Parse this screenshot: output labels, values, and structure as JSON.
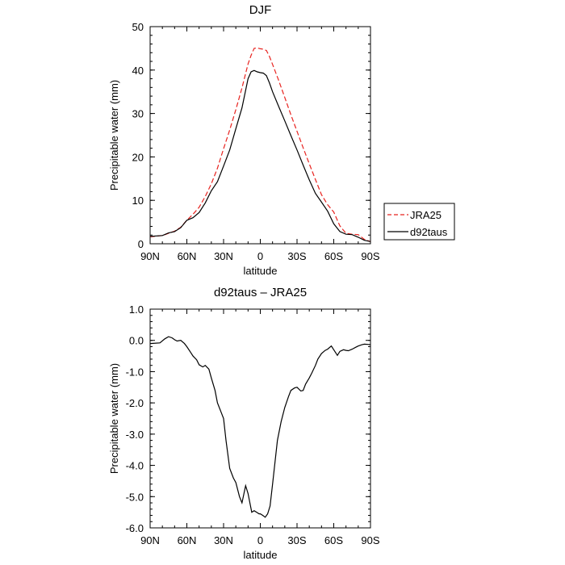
{
  "chart_data": [
    {
      "type": "line",
      "title": "DJF",
      "xlabel": "latitude",
      "ylabel": "Precipitable water (mm)",
      "xlim": [
        90,
        -90
      ],
      "ylim": [
        0,
        50
      ],
      "xticks": [
        90,
        60,
        30,
        0,
        -30,
        -60,
        -90
      ],
      "xtick_labels": [
        "90N",
        "60N",
        "30N",
        "0",
        "30S",
        "60S",
        "90S"
      ],
      "yticks": [
        0,
        10,
        20,
        30,
        40,
        50
      ],
      "ytick_labels": [
        "0",
        "10",
        "20",
        "30",
        "40",
        "50"
      ],
      "legend_position": "right-outside",
      "series": [
        {
          "name": "JRA25",
          "color": "#e8231f",
          "style": "dashed",
          "x": [
            90,
            80,
            75,
            70,
            65,
            60,
            55,
            50,
            45,
            40,
            35,
            30,
            25,
            20,
            15,
            10,
            7.5,
            5,
            2.5,
            0,
            -2.5,
            -5,
            -7.5,
            -10,
            -15,
            -20,
            -25,
            -30,
            -35,
            -40,
            -45,
            -50,
            -55,
            -60,
            -65,
            -70,
            -75,
            -80,
            -85,
            -90
          ],
          "y": [
            1.6,
            1.9,
            2.4,
            2.9,
            3.8,
            5.4,
            6.8,
            8.4,
            10.9,
            13.8,
            17.4,
            21.9,
            26.2,
            30.9,
            35.9,
            41.4,
            43.4,
            45.0,
            45.1,
            44.9,
            44.8,
            44.5,
            43.1,
            41.3,
            37.6,
            33.7,
            29.7,
            25.9,
            22.1,
            18.4,
            14.8,
            11.3,
            9.0,
            7.3,
            4.1,
            2.4,
            2.2,
            2.1,
            1.0,
            0.5
          ]
        },
        {
          "name": "d92taus",
          "color": "#000000",
          "style": "solid",
          "x": [
            90,
            80,
            75,
            70,
            65,
            60,
            55,
            50,
            45,
            40,
            35,
            30,
            25,
            20,
            15,
            10,
            7.5,
            5,
            2.5,
            0,
            -2.5,
            -5,
            -7.5,
            -10,
            -15,
            -20,
            -25,
            -30,
            -35,
            -40,
            -45,
            -50,
            -55,
            -60,
            -65,
            -70,
            -75,
            -80,
            -85,
            -90
          ],
          "y": [
            1.7,
            1.9,
            2.5,
            2.8,
            3.7,
            5.4,
            6.0,
            7.2,
            9.4,
            12.2,
            14.3,
            17.9,
            21.6,
            26.5,
            31.3,
            38.0,
            39.6,
            39.9,
            39.6,
            39.4,
            39.3,
            38.7,
            37.0,
            35.0,
            31.6,
            28.3,
            24.9,
            21.6,
            18.1,
            14.7,
            11.6,
            9.6,
            7.5,
            4.6,
            2.8,
            2.2,
            2.1,
            1.5,
            0.8,
            0.5
          ]
        }
      ]
    },
    {
      "type": "line",
      "title": "d92taus – JRA25",
      "xlabel": "latitude",
      "ylabel": "Precipitable water (mm)",
      "xlim": [
        90,
        -90
      ],
      "ylim": [
        -6.0,
        1.0
      ],
      "xticks": [
        90,
        60,
        30,
        0,
        -30,
        -60,
        -90
      ],
      "xtick_labels": [
        "90N",
        "60N",
        "30N",
        "0",
        "30S",
        "60S",
        "90S"
      ],
      "yticks": [
        1.0,
        0.0,
        -1.0,
        -2.0,
        -3.0,
        -4.0,
        -5.0,
        -6.0
      ],
      "ytick_labels": [
        "1.0",
        "0.0",
        "-1.0",
        "-2.0",
        "-3.0",
        "-4.0",
        "-5.0",
        "-6.0"
      ],
      "series": [
        {
          "color": "#000000",
          "style": "solid",
          "x": [
            90,
            82,
            78,
            75,
            72,
            70,
            68,
            65,
            62,
            60,
            57,
            55,
            52,
            50,
            47,
            45,
            42,
            40,
            37,
            35,
            32,
            30,
            28,
            25,
            22,
            20,
            17,
            15,
            12,
            10,
            7,
            5,
            3,
            1,
            0,
            -2,
            -4,
            -6,
            -8,
            -10,
            -12,
            -14,
            -17,
            -20,
            -23,
            -25,
            -28,
            -30,
            -33,
            -35,
            -37,
            -40,
            -42,
            -45,
            -47,
            -50,
            -53,
            -55,
            -58,
            -60,
            -63,
            -65,
            -68,
            -70,
            -72,
            -75,
            -78,
            -80,
            -83,
            -85,
            -88,
            -90
          ],
          "y": [
            -0.1,
            -0.08,
            0.05,
            0.12,
            0.08,
            0.02,
            -0.02,
            0.0,
            -0.1,
            -0.2,
            -0.38,
            -0.5,
            -0.62,
            -0.78,
            -0.85,
            -0.8,
            -0.92,
            -1.2,
            -1.6,
            -2.0,
            -2.3,
            -2.5,
            -3.2,
            -4.1,
            -4.4,
            -4.55,
            -5.0,
            -5.2,
            -4.65,
            -4.9,
            -5.5,
            -5.45,
            -5.5,
            -5.55,
            -5.55,
            -5.6,
            -5.66,
            -5.55,
            -5.3,
            -4.6,
            -3.9,
            -3.2,
            -2.6,
            -2.15,
            -1.8,
            -1.6,
            -1.52,
            -1.5,
            -1.62,
            -1.6,
            -1.4,
            -1.2,
            -1.05,
            -0.8,
            -0.6,
            -0.42,
            -0.32,
            -0.28,
            -0.18,
            -0.3,
            -0.48,
            -0.35,
            -0.3,
            -0.32,
            -0.33,
            -0.28,
            -0.22,
            -0.18,
            -0.14,
            -0.12,
            -0.13,
            -0.14
          ]
        }
      ]
    }
  ]
}
